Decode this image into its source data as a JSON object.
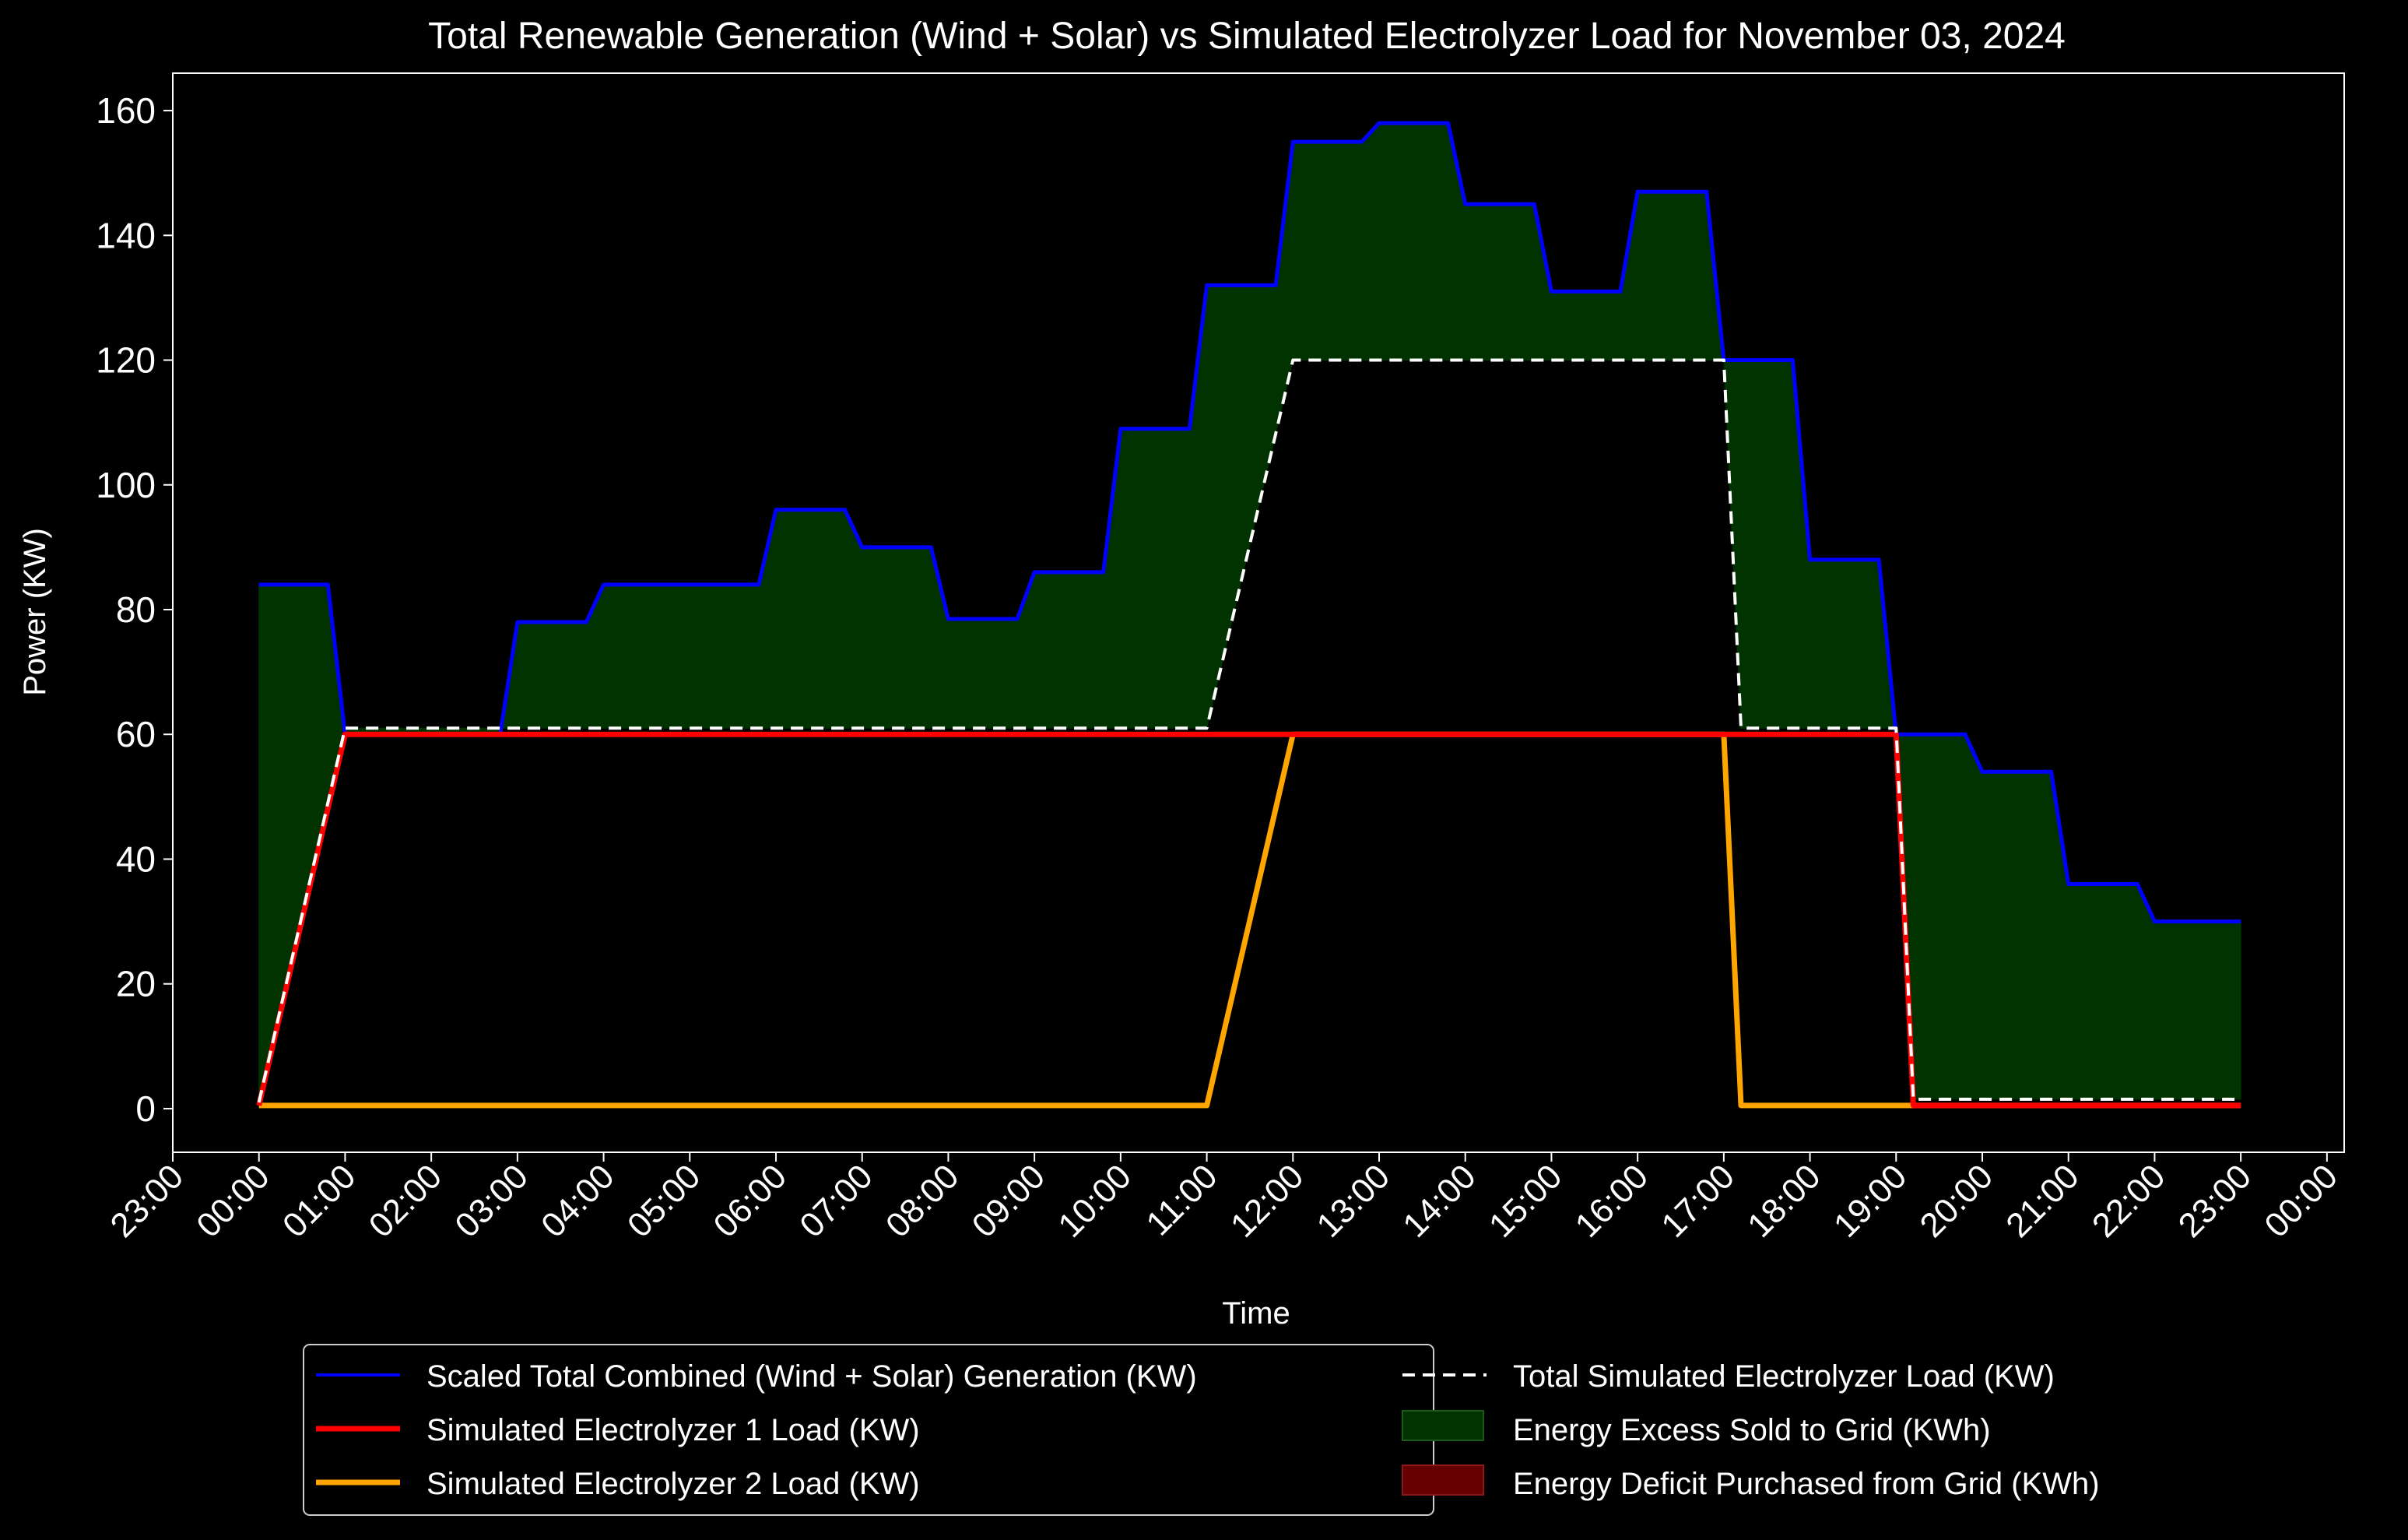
{
  "chart_data": {
    "type": "line",
    "title": "Total Renewable Generation (Wind + Solar) vs Simulated Electrolyzer Load for November 03, 2024",
    "xlabel": "Time",
    "ylabel": "Power (KW)",
    "ylim": [
      -7,
      166
    ],
    "yticks": [
      0,
      20,
      40,
      60,
      80,
      100,
      120,
      140,
      160
    ],
    "xlim": [
      -1.0,
      24.2
    ],
    "xticks": [
      -1,
      0,
      1,
      2,
      3,
      4,
      5,
      6,
      7,
      8,
      9,
      10,
      11,
      12,
      13,
      14,
      15,
      16,
      17,
      18,
      19,
      20,
      21,
      22,
      23,
      24
    ],
    "xticklabels": [
      "23:00",
      "00:00",
      "01:00",
      "02:00",
      "03:00",
      "04:00",
      "05:00",
      "06:00",
      "07:00",
      "08:00",
      "09:00",
      "10:00",
      "11:00",
      "12:00",
      "13:00",
      "14:00",
      "15:00",
      "16:00",
      "17:00",
      "18:00",
      "19:00",
      "20:00",
      "21:00",
      "22:00",
      "23:00",
      "00:00"
    ],
    "grid": false,
    "legend_position": "bottom-center",
    "colors": {
      "background": "#000000",
      "generation": "#0000ff",
      "electrolyzer1": "#ff0000",
      "electrolyzer2": "#ffa500",
      "total_load": "#ffffff",
      "excess_fill": "#003300",
      "deficit_fill": "#660000",
      "axes": "#ffffff"
    },
    "series": [
      {
        "name": "Scaled Total Combined (Wind + Solar) Generation (KW)",
        "x": [
          0,
          0.8,
          1,
          2,
          2.8,
          3,
          3.8,
          4,
          5,
          5.8,
          6,
          6.8,
          7,
          7.8,
          8,
          8.8,
          9,
          9.8,
          10,
          10.8,
          11,
          11.8,
          12,
          12.8,
          13,
          13.8,
          14,
          14.8,
          15,
          15.8,
          16,
          16.8,
          17,
          17.8,
          18,
          18.8,
          19,
          19.8,
          20,
          20.8,
          21,
          21.8,
          22,
          22.8,
          23
        ],
        "values": [
          84,
          84,
          60,
          60,
          60,
          78,
          78,
          84,
          84,
          84,
          96,
          96,
          90,
          90,
          78.5,
          78.5,
          86,
          86,
          109,
          109,
          132,
          132,
          155,
          155,
          158,
          158,
          145,
          145,
          131,
          131,
          147,
          147,
          120,
          120,
          88,
          88,
          60,
          60,
          54,
          54,
          36,
          36,
          30,
          30,
          30
        ],
        "style": "solid"
      },
      {
        "name": "Simulated Electrolyzer 1 Load (KW)",
        "x": [
          0,
          1,
          19,
          19.2,
          23
        ],
        "values": [
          0.5,
          60,
          60,
          0.5,
          0.5
        ],
        "style": "solid"
      },
      {
        "name": "Simulated Electrolyzer 2 Load (KW)",
        "x": [
          0,
          11,
          12,
          17,
          17.2,
          23
        ],
        "values": [
          0.5,
          0.5,
          60,
          60,
          0.5,
          0.5
        ],
        "style": "solid"
      },
      {
        "name": "Total Simulated Electrolyzer Load (KW)",
        "x": [
          0,
          1,
          11,
          12,
          17,
          17.2,
          19,
          19.2,
          23
        ],
        "values": [
          1,
          61,
          61,
          120,
          120,
          61,
          61,
          1.5,
          1.5
        ],
        "style": "dashed"
      }
    ],
    "fills": [
      {
        "name": "Energy Excess Sold to Grid (KWh)"
      },
      {
        "name": "Energy Deficit Purchased from Grid (KWh)"
      }
    ]
  }
}
